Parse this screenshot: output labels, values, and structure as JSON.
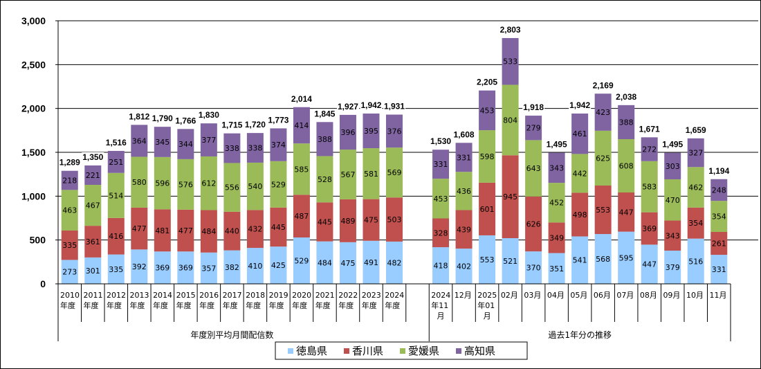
{
  "chart_data": {
    "type": "bar",
    "stacked": true,
    "title": "",
    "xlabel": "",
    "ylabel": "",
    "ylim": [
      0,
      3000
    ],
    "yticks": [
      "0",
      "500",
      "1,000",
      "1,500",
      "2,000",
      "2,500",
      "3,000"
    ],
    "ytick_values": [
      0,
      500,
      1000,
      1500,
      2000,
      2500,
      3000
    ],
    "grid": true,
    "legend_position": "bottom",
    "colors": {
      "徳島県": "#99CCFF",
      "香川県": "#C0504D",
      "愛媛県": "#9BBB59",
      "高知県": "#8064A2"
    },
    "groups": [
      {
        "label": "年度別平均月間配信数",
        "start": 0,
        "end": 15
      },
      {
        "label": "過去1年分の推移",
        "start": 16,
        "end": 29
      }
    ],
    "categories": [
      [
        "2010",
        "年度"
      ],
      [
        "2011",
        "年度"
      ],
      [
        "2012",
        "年度"
      ],
      [
        "2013",
        "年度"
      ],
      [
        "2014",
        "年度"
      ],
      [
        "2015",
        "年度"
      ],
      [
        "2016",
        "年度"
      ],
      [
        "2017",
        "年度"
      ],
      [
        "2018",
        "年度"
      ],
      [
        "2019",
        "年度"
      ],
      [
        "2020",
        "年度"
      ],
      [
        "2021",
        "年度"
      ],
      [
        "2022",
        "年度"
      ],
      [
        "2023",
        "年度"
      ],
      [
        "2024",
        "年度"
      ],
      [],
      [
        "2024",
        "年11",
        "月"
      ],
      [
        "12月"
      ],
      [
        "2025",
        "年01",
        "月"
      ],
      [
        "02月"
      ],
      [
        "03月"
      ],
      [
        "04月"
      ],
      [
        "05月"
      ],
      [
        "06月"
      ],
      [
        "07月"
      ],
      [
        "08月"
      ],
      [
        "09月"
      ],
      [
        "10月"
      ],
      [
        "11月"
      ]
    ],
    "series": [
      {
        "name": "徳島県",
        "values": [
          273,
          301,
          335,
          392,
          369,
          369,
          357,
          382,
          410,
          425,
          529,
          484,
          475,
          491,
          482,
          null,
          418,
          402,
          553,
          521,
          370,
          351,
          541,
          568,
          595,
          447,
          379,
          516,
          331
        ]
      },
      {
        "name": "香川県",
        "values": [
          335,
          361,
          416,
          477,
          481,
          477,
          484,
          440,
          432,
          445,
          487,
          445,
          489,
          475,
          503,
          null,
          328,
          439,
          601,
          945,
          626,
          349,
          498,
          553,
          447,
          369,
          343,
          354,
          261
        ]
      },
      {
        "name": "愛媛県",
        "values": [
          463,
          467,
          514,
          580,
          596,
          576,
          612,
          556,
          540,
          529,
          585,
          528,
          567,
          581,
          569,
          null,
          453,
          436,
          598,
          804,
          643,
          452,
          442,
          625,
          608,
          583,
          470,
          462,
          354
        ]
      },
      {
        "name": "高知県",
        "values": [
          218,
          221,
          251,
          364,
          345,
          344,
          377,
          338,
          338,
          374,
          414,
          388,
          396,
          395,
          376,
          null,
          331,
          331,
          453,
          533,
          279,
          343,
          461,
          423,
          388,
          272,
          303,
          327,
          248
        ]
      }
    ],
    "totals": [
      "1,289",
      "1,350",
      "1,516",
      "1,812",
      "1,790",
      "1,766",
      "1,830",
      "1,715",
      "1,720",
      "1,773",
      "2,014",
      "1,845",
      "1,927",
      "1,942",
      "1,931",
      null,
      "1,530",
      "1,608",
      "2,205",
      "2,803",
      "1,918",
      "1,495",
      "1,942",
      "2,169",
      "2,038",
      "1,671",
      "1,495",
      "1,659",
      "1,194"
    ]
  }
}
